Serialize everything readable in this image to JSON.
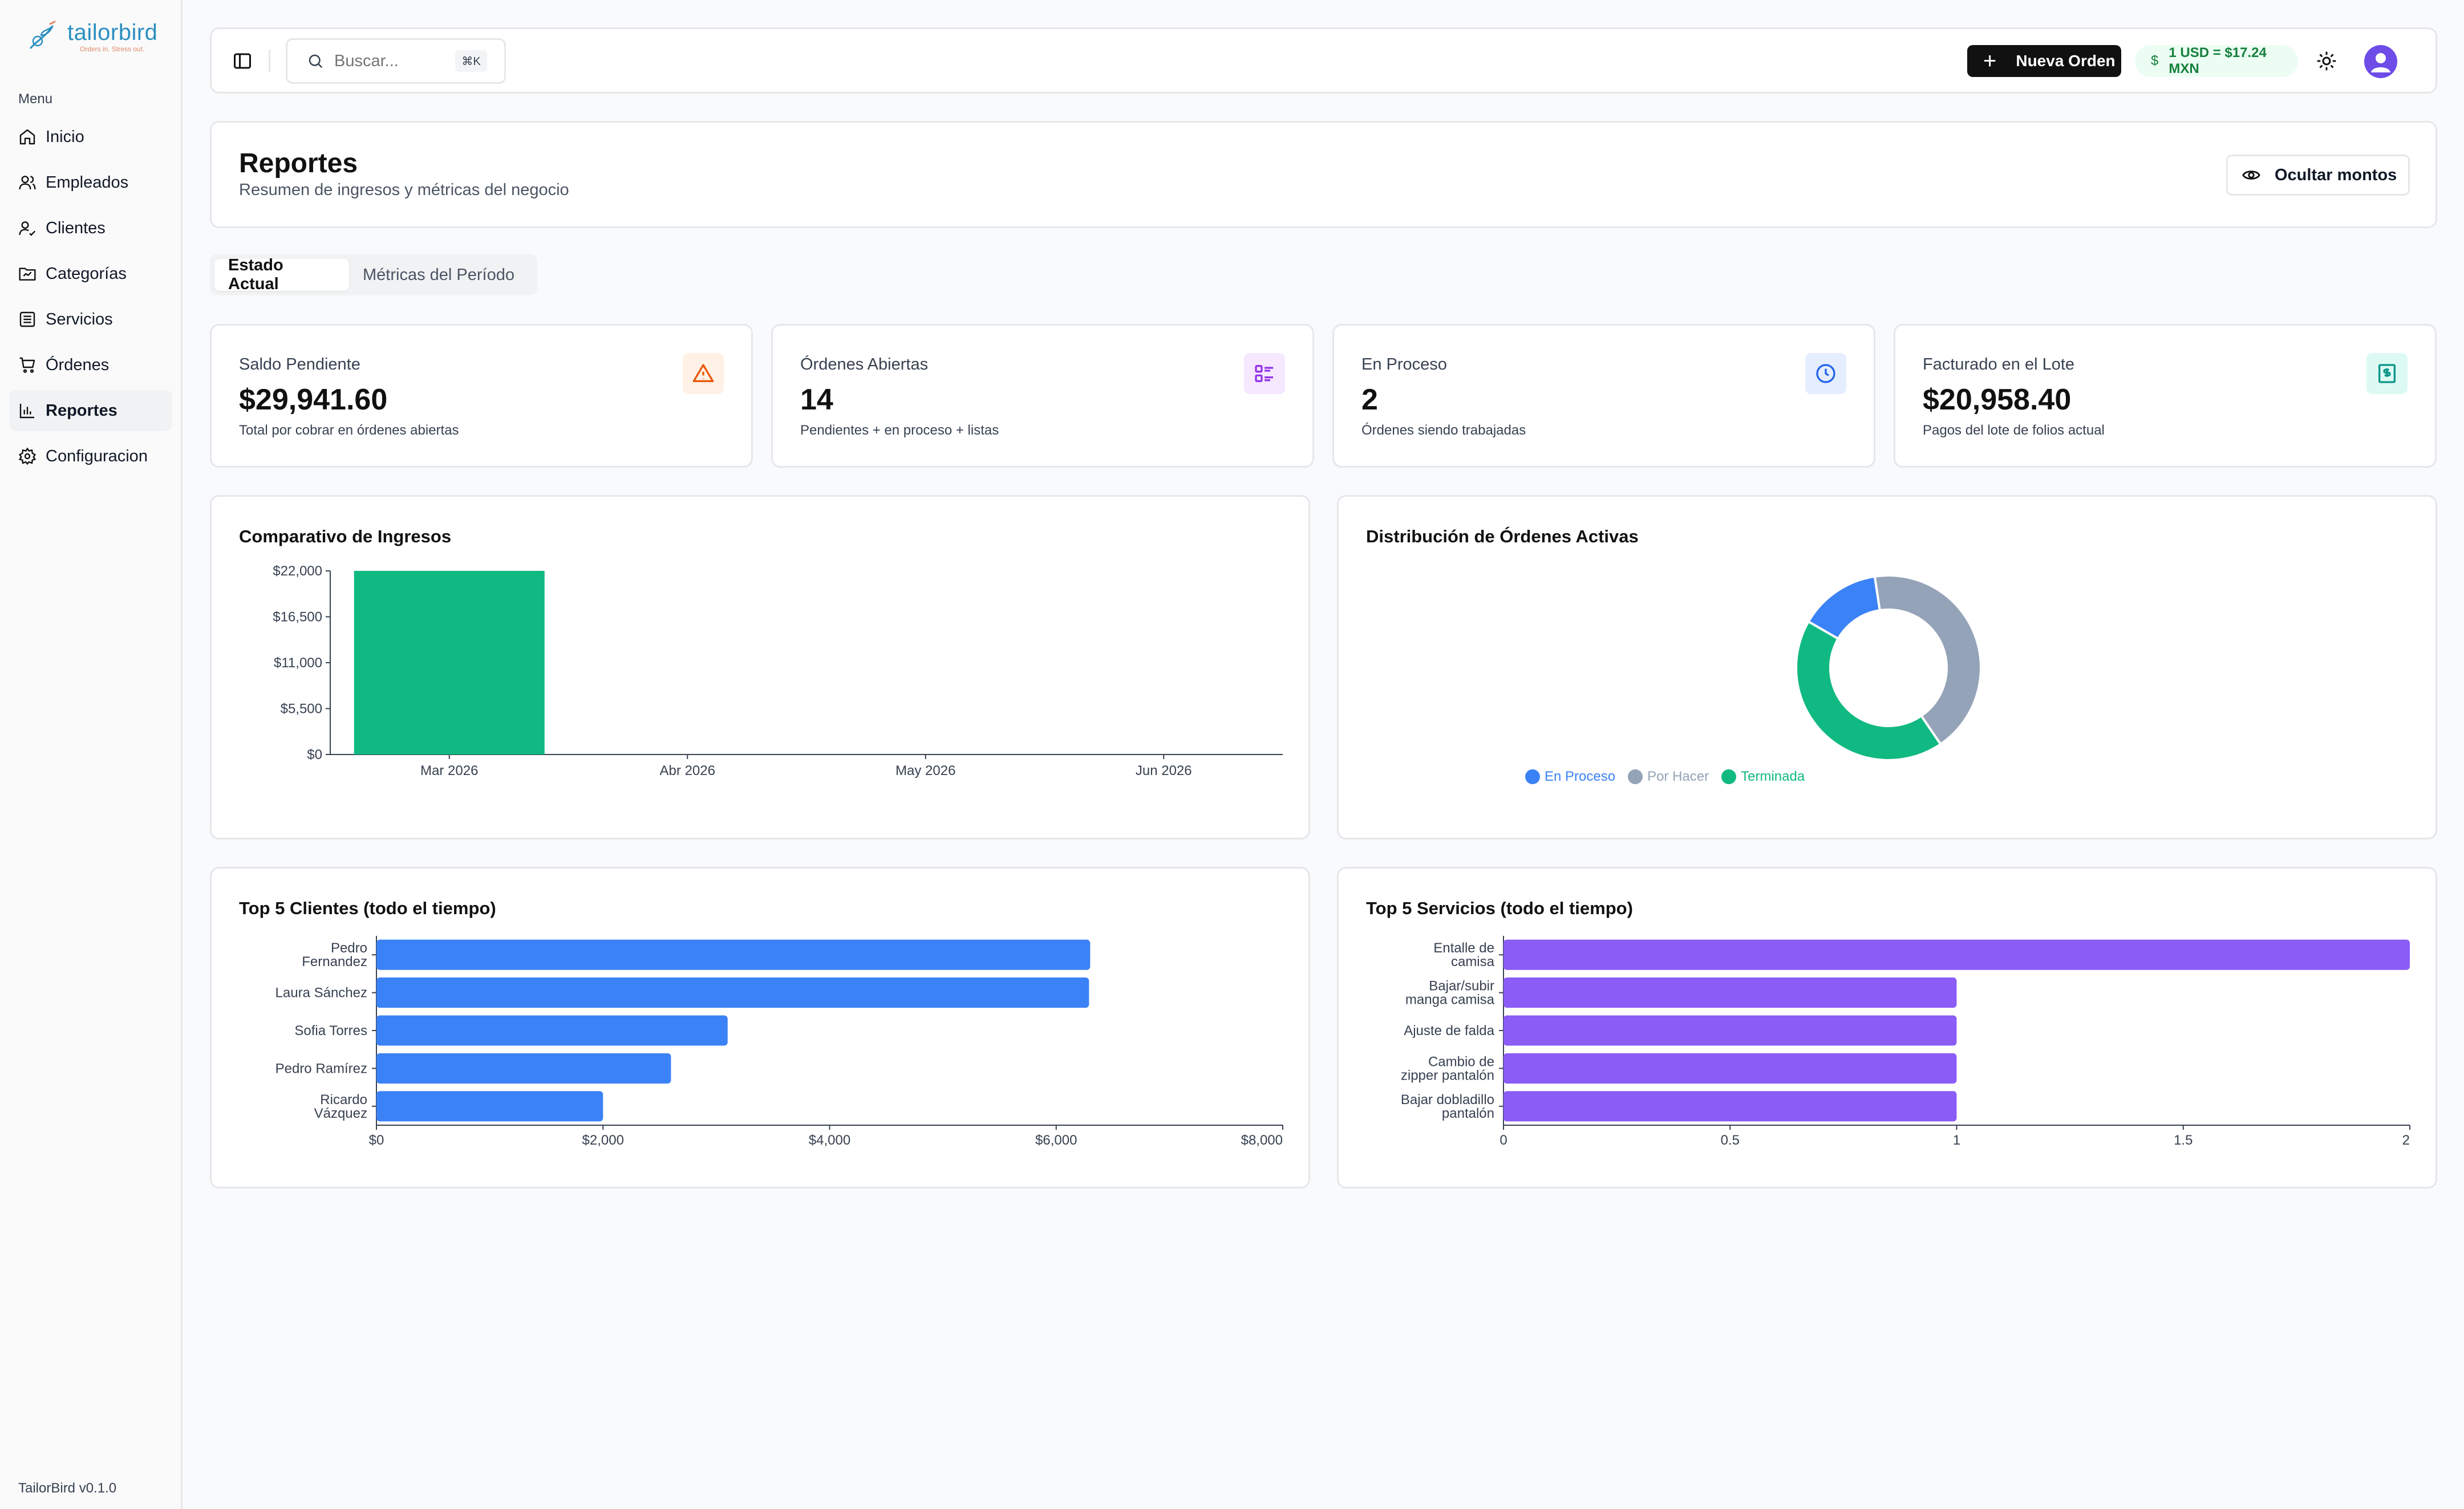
{
  "sidebar": {
    "logo_name": "tailorbird",
    "logo_tagline": "Orders in. Stress out.",
    "menu_label": "Menu",
    "items": [
      {
        "label": "Inicio",
        "icon": "home-icon"
      },
      {
        "label": "Empleados",
        "icon": "users-icon"
      },
      {
        "label": "Clientes",
        "icon": "user-check-icon"
      },
      {
        "label": "Categorías",
        "icon": "folder-icon"
      },
      {
        "label": "Servicios",
        "icon": "list-icon"
      },
      {
        "label": "Órdenes",
        "icon": "cart-icon"
      },
      {
        "label": "Reportes",
        "icon": "chart-icon"
      },
      {
        "label": "Configuracion",
        "icon": "gear-icon"
      }
    ],
    "active_item": "Reportes",
    "version": "TailorBird v0.1.0"
  },
  "header": {
    "search_placeholder": "Buscar...",
    "search_shortcut": "⌘K",
    "new_order_label": "Nueva Orden",
    "rate_symbol": "$",
    "rate_label": "1 USD = $17.24 MXN"
  },
  "page": {
    "title": "Reportes",
    "subtitle": "Resumen de ingresos y métricas del negocio",
    "hide_amounts_label": "Ocultar montos"
  },
  "tabs": [
    {
      "label": "Estado Actual",
      "active": true
    },
    {
      "label": "Métricas del Período",
      "active": false
    }
  ],
  "kpis": [
    {
      "label": "Saldo Pendiente",
      "value": "$29,941.60",
      "desc": "Total por cobrar en órdenes abiertas",
      "icon": "alert-triangle-icon",
      "color": "#ea580c",
      "bg": "#fff1e6"
    },
    {
      "label": "Órdenes Abiertas",
      "value": "14",
      "desc": "Pendientes + en proceso + listas",
      "icon": "list-checks-icon",
      "color": "#9333ea",
      "bg": "#f5e8ff"
    },
    {
      "label": "En Proceso",
      "value": "2",
      "desc": "Órdenes siendo trabajadas",
      "icon": "clock-icon",
      "color": "#2563eb",
      "bg": "#e5eefe"
    },
    {
      "label": "Facturado en el Lote",
      "value": "$20,958.40",
      "desc": "Pagos del lote de folios actual",
      "icon": "receipt-icon",
      "color": "#0d9488",
      "bg": "#dcfaf3"
    }
  ],
  "charts": {
    "income": {
      "title": "Comparativo de Ingresos",
      "chart_data": {
        "type": "bar",
        "categories": [
          "Mar 2026",
          "Abr 2026",
          "May 2026",
          "Jun 2026"
        ],
        "values": [
          22000,
          0,
          0,
          0
        ],
        "ylim": [
          0,
          22000
        ],
        "yticks": [
          "$0",
          "$5,500",
          "$11,000",
          "$16,500",
          "$22,000"
        ],
        "color": "#10b981"
      }
    },
    "distribution": {
      "title": "Distribución de Órdenes Activas",
      "chart_data": {
        "type": "pie",
        "slices": [
          {
            "name": "En Proceso",
            "value": 2,
            "color": "#3b82f6"
          },
          {
            "name": "Por Hacer",
            "value": 6,
            "color": "#94a3b8"
          },
          {
            "name": "Terminada",
            "value": 6,
            "color": "#10b981"
          }
        ]
      }
    },
    "top_clients": {
      "title": "Top 5 Clientes (todo el tiempo)",
      "chart_data": {
        "type": "bar",
        "orientation": "horizontal",
        "categories": [
          [
            "Pedro",
            "Fernandez"
          ],
          [
            "Laura Sánchez"
          ],
          [
            "Sofia Torres"
          ],
          [
            "Pedro Ramírez"
          ],
          [
            "Ricardo",
            "Vázquez"
          ]
        ],
        "values": [
          6300,
          6290,
          3100,
          2600,
          2000
        ],
        "xlim": [
          0,
          8000
        ],
        "xticks": [
          "$0",
          "$2,000",
          "$4,000",
          "$6,000",
          "$8,000"
        ],
        "color": "#3b82f6"
      }
    },
    "top_services": {
      "title": "Top 5 Servicios (todo el tiempo)",
      "chart_data": {
        "type": "bar",
        "orientation": "horizontal",
        "categories": [
          [
            "Entalle de",
            "camisa"
          ],
          [
            "Bajar/subir",
            "manga camisa"
          ],
          [
            "Ajuste de falda"
          ],
          [
            "Cambio de",
            "zipper pantalón"
          ],
          [
            "Bajar dobladillo",
            "pantalón"
          ]
        ],
        "values": [
          2,
          1,
          1,
          1,
          1
        ],
        "xlim": [
          0,
          2
        ],
        "xticks": [
          "0",
          "0.5",
          "1",
          "1.5",
          "2"
        ],
        "color": "#8b5cf6"
      }
    }
  }
}
